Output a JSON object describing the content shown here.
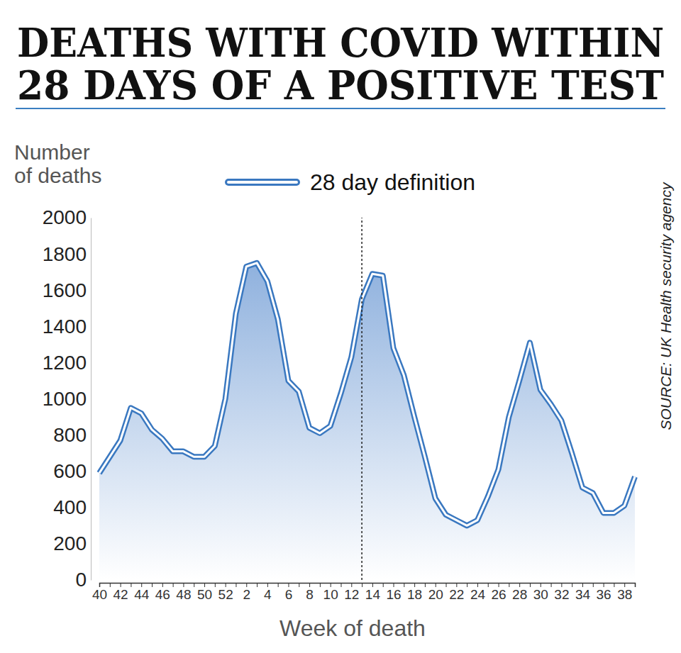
{
  "chart_data": {
    "type": "line",
    "title": "DEATHS WITH COVID WITHIN\n28 DAYS OF A POSITIVE TEST",
    "ylabel": "Number\nof deaths",
    "xlabel": "Week of death",
    "source": "SOURCE: UK Health security agency",
    "legend": "top",
    "grid": false,
    "categories": [
      "40",
      null,
      "42",
      null,
      "44",
      null,
      "46",
      null,
      "48",
      null,
      "50",
      null,
      "52",
      null,
      "2",
      null,
      "4",
      null,
      "6",
      null,
      "8",
      null,
      "10",
      null,
      "12",
      null,
      "14",
      null,
      "16",
      null,
      "18",
      null,
      "20",
      null,
      "22",
      null,
      "24",
      null,
      "26",
      null,
      "28",
      null,
      "30",
      null,
      "32",
      null,
      "34",
      null,
      "36",
      null,
      "38",
      null
    ],
    "series": [
      {
        "name": "28 day definition",
        "color": "#3a78c0",
        "values": [
          590,
          680,
          770,
          950,
          920,
          830,
          780,
          710,
          710,
          680,
          680,
          740,
          1000,
          1470,
          1730,
          1750,
          1650,
          1440,
          1100,
          1040,
          840,
          810,
          850,
          1030,
          1230,
          1550,
          1690,
          1680,
          1280,
          1130,
          900,
          680,
          450,
          360,
          330,
          300,
          330,
          460,
          610,
          900,
          1100,
          1310,
          1050,
          970,
          880,
          700,
          510,
          480,
          370,
          370,
          410,
          570
        ]
      }
    ],
    "reference_x": 25,
    "ylim": [
      0,
      2000
    ],
    "yticks": [
      0,
      200,
      400,
      600,
      800,
      1000,
      1200,
      1400,
      1600,
      1800,
      2000
    ]
  }
}
